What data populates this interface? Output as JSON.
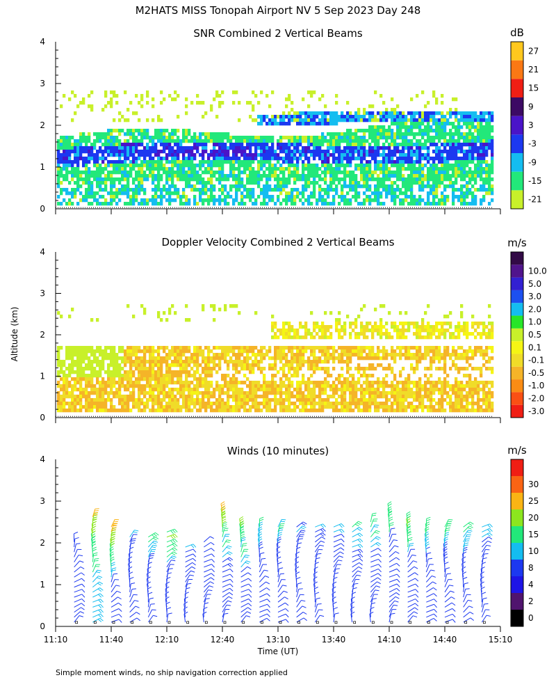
{
  "title": "M2HATS MISS Tonopah Airport NV   5 Sep 2023 Day 248",
  "ylabel": "Altitude (km)",
  "xlabel": "Time (UT)",
  "footnote": "Simple moment winds, no ship navigation correction applied",
  "x_ticks": [
    "11:10",
    "11:40",
    "12:10",
    "12:40",
    "13:10",
    "13:40",
    "14:10",
    "14:40",
    "15:10"
  ],
  "y_ticks": [
    "0",
    "1",
    "2",
    "3",
    "4"
  ],
  "chart_data": [
    {
      "type": "heatmap",
      "title": "SNR Combined 2 Vertical Beams",
      "xlabel": "",
      "ylabel": "Altitude (km)",
      "xlim": [
        "11:10",
        "15:10"
      ],
      "ylim": [
        0,
        4
      ],
      "colorbar": {
        "unit": "dB",
        "labels": [
          "-21",
          "-15",
          "-9",
          "-3",
          "3",
          "9",
          "15",
          "21",
          "27"
        ],
        "colors": [
          "#c8f02a",
          "#22e87a",
          "#14bdf0",
          "#1c38f0",
          "#4a14c8",
          "#3c0a64",
          "#f01e14",
          "#fa7814",
          "#ffc81e"
        ]
      },
      "structure": [
        {
          "feature": "main layer",
          "alt_km": [
            0.15,
            2.3
          ],
          "snr_db": [
            -21,
            -3
          ]
        },
        {
          "feature": "strong band",
          "alt_km": [
            1.2,
            1.5
          ],
          "snr_db": [
            -3,
            3
          ]
        },
        {
          "feature": "upper layer",
          "alt_km": [
            2.0,
            2.3
          ],
          "snr_db": [
            -9,
            -3
          ]
        }
      ]
    },
    {
      "type": "heatmap",
      "title": "Doppler Velocity Combined 2 Vertical Beams",
      "xlabel": "",
      "ylabel": "Altitude (km)",
      "xlim": [
        "11:10",
        "15:10"
      ],
      "ylim": [
        0,
        4
      ],
      "colorbar": {
        "unit": "m/s",
        "labels": [
          "-3.0",
          "-2.0",
          "-1.0",
          "-0.5",
          "-0.1",
          "0.1",
          "0.5",
          "1.0",
          "2.0",
          "3.0",
          "5.0",
          "10.0"
        ],
        "colors": [
          "#f01e14",
          "#fa5014",
          "#fa8c14",
          "#f5b428",
          "#f0dc28",
          "#f5f514",
          "#c8f02a",
          "#28e628",
          "#14bdf0",
          "#1c50f0",
          "#3220d2",
          "#50148c",
          "#320a46"
        ]
      },
      "structure": [
        {
          "feature": "main layer",
          "alt_km": [
            0.15,
            1.8
          ],
          "velocity_ms": [
            -1.0,
            0.1
          ]
        },
        {
          "feature": "upper layer",
          "alt_km": [
            2.0,
            2.3
          ],
          "velocity_ms": [
            -0.5,
            0.5
          ]
        }
      ]
    },
    {
      "type": "scatter",
      "title": "Winds (10 minutes)",
      "xlabel": "Time (UT)",
      "ylabel": "Altitude (km)",
      "xlim": [
        "11:10",
        "15:10"
      ],
      "ylim": [
        0,
        4
      ],
      "colorbar": {
        "unit": "m/s",
        "labels": [
          "0",
          "2",
          "4",
          "8",
          "10",
          "15",
          "20",
          "25",
          "30"
        ],
        "colors": [
          "#000000",
          "#50146e",
          "#1e14e6",
          "#1c38f0",
          "#14bdf0",
          "#22e87a",
          "#8ce61e",
          "#fab414",
          "#fa6414",
          "#f01e14"
        ]
      },
      "x": [
        "11:20",
        "11:30",
        "11:40",
        "11:50",
        "12:00",
        "12:10",
        "12:20",
        "12:30",
        "12:40",
        "12:50",
        "13:00",
        "13:10",
        "13:20",
        "13:30",
        "13:40",
        "13:50",
        "14:00",
        "14:10",
        "14:20",
        "14:30",
        "14:40",
        "14:50",
        "15:00"
      ],
      "barb_top_km": [
        2.1,
        2.7,
        2.4,
        2.2,
        2.2,
        2.3,
        2.0,
        2.1,
        2.8,
        2.4,
        2.5,
        2.5,
        2.4,
        2.4,
        2.4,
        2.5,
        2.6,
        2.8,
        2.6,
        2.5,
        2.4,
        2.5,
        2.4
      ],
      "barb_speed_ms": [
        [
          4,
          6
        ],
        [
          8,
          25
        ],
        [
          4,
          30
        ],
        [
          4,
          10
        ],
        [
          4,
          15
        ],
        [
          4,
          20
        ],
        [
          4,
          10
        ],
        [
          4,
          8
        ],
        [
          4,
          25
        ],
        [
          4,
          20
        ],
        [
          4,
          15
        ],
        [
          4,
          15
        ],
        [
          4,
          10
        ],
        [
          4,
          10
        ],
        [
          4,
          10
        ],
        [
          4,
          15
        ],
        [
          4,
          15
        ],
        [
          4,
          15
        ],
        [
          4,
          20
        ],
        [
          4,
          15
        ],
        [
          4,
          15
        ],
        [
          4,
          15
        ],
        [
          4,
          10
        ]
      ]
    }
  ]
}
